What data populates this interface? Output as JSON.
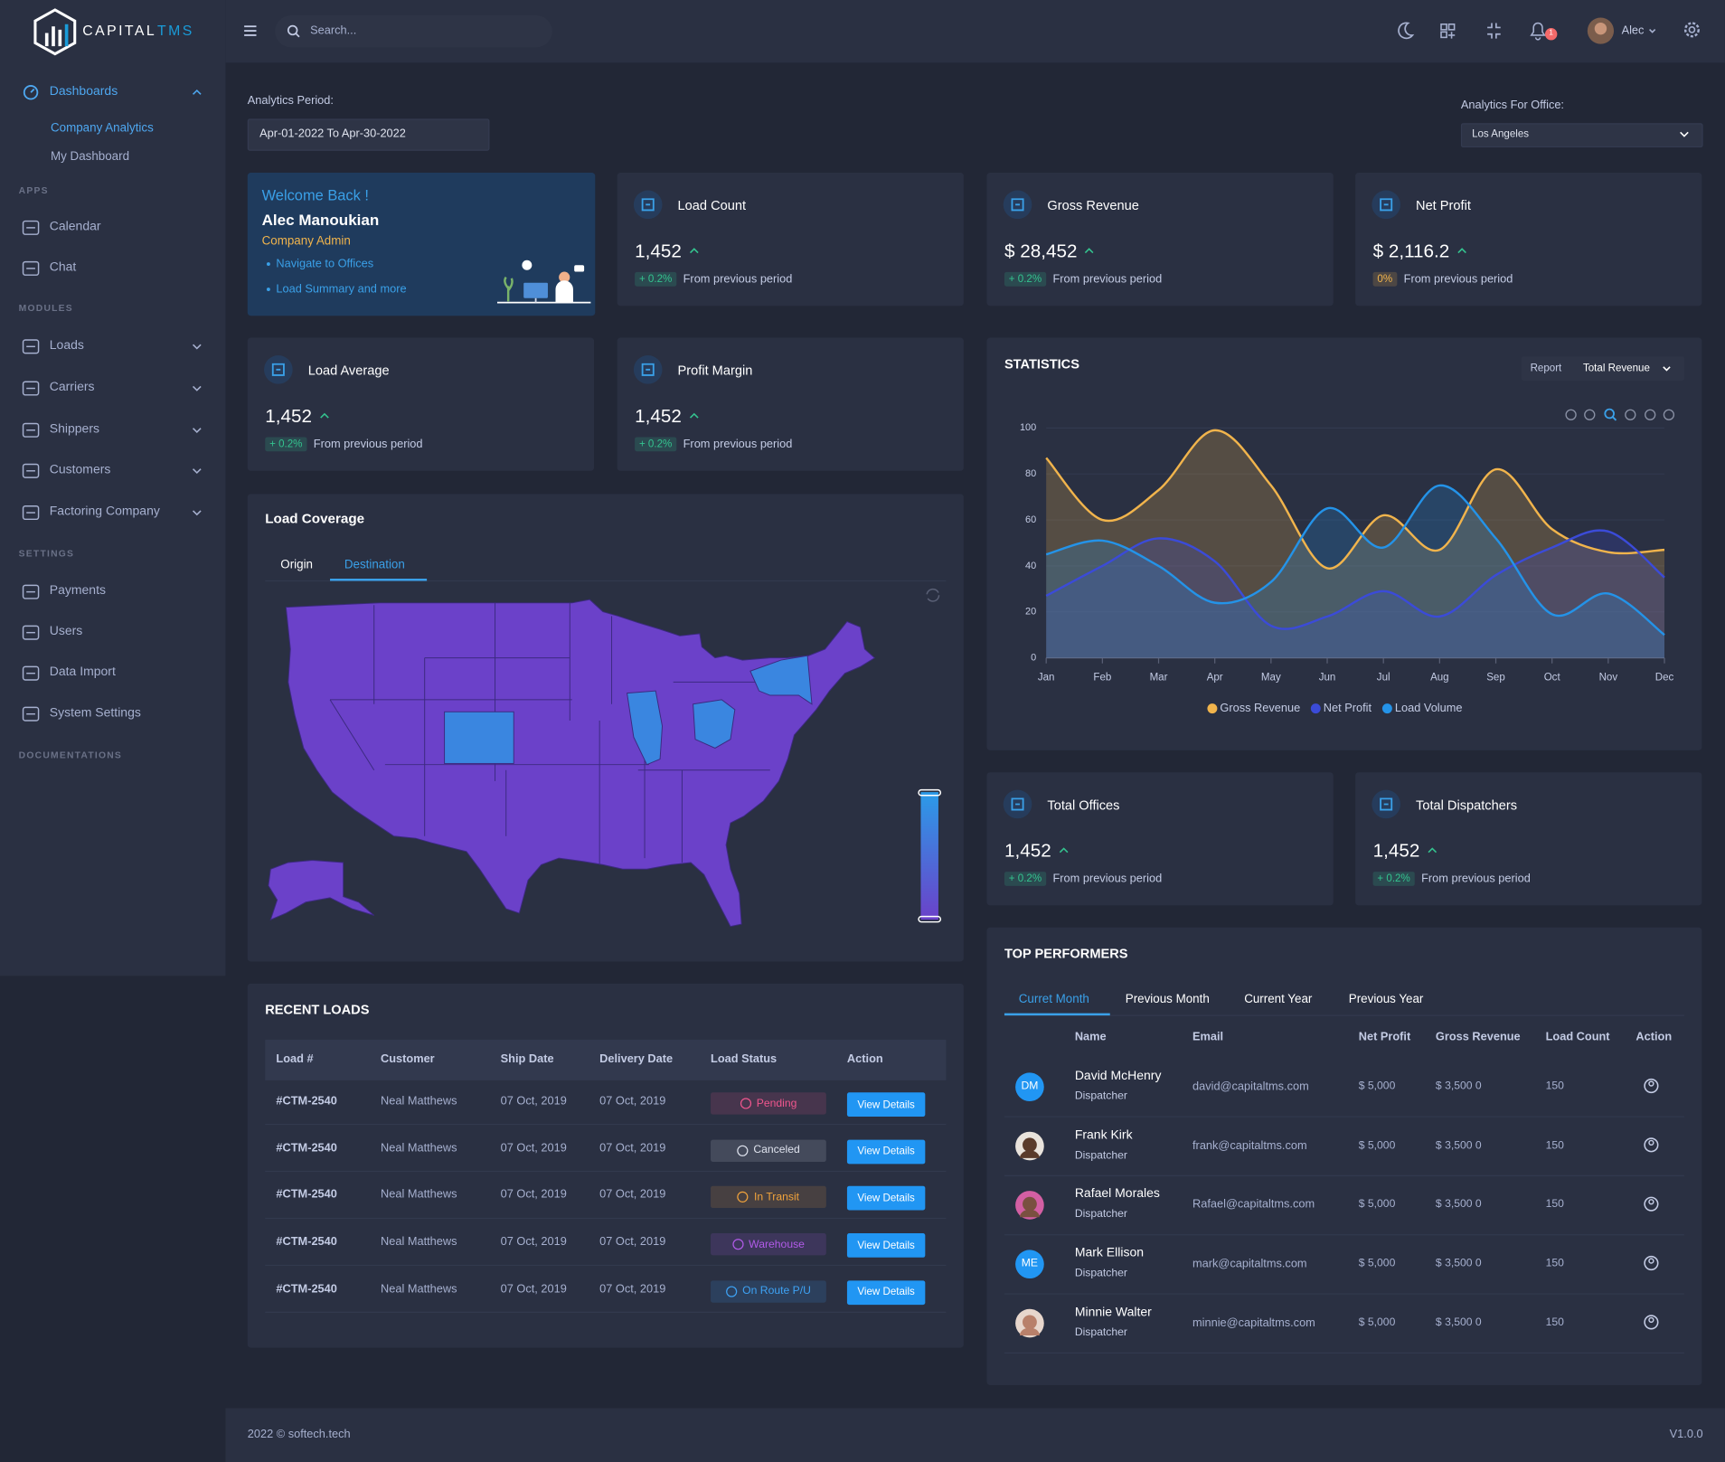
{
  "brand": {
    "name": "CAPITAL",
    "suffix": "TMS"
  },
  "sidebar": {
    "menu": {
      "label": "Dashboards",
      "items": [
        "Company Analytics",
        "My Dashboard"
      ]
    },
    "sections": [
      {
        "heading": "APPS",
        "items": [
          "Calendar",
          "Chat"
        ]
      },
      {
        "heading": "MODULES",
        "items": [
          "Loads",
          "Carriers",
          "Shippers",
          "Customers",
          "Factoring Company"
        ]
      },
      {
        "heading": "SETTINGS",
        "items": [
          "Payments",
          "Users",
          "Data Import",
          "System Settings"
        ]
      },
      {
        "heading": "DOCUMENTATIONS",
        "items": []
      }
    ]
  },
  "header": {
    "search_placeholder": "Search...",
    "notifications": 1,
    "user": "Alec"
  },
  "filters": {
    "period_label": "Analytics Period:",
    "period": "Apr-01-2022 To Apr-30-2022",
    "office_label": "Analytics For Office:",
    "office": "Los Angeles"
  },
  "welcome": {
    "greeting": "Welcome Back !",
    "name": "Alec Manoukian",
    "role": "Company Admin",
    "links": [
      "Navigate to Offices",
      "Load Summary and more"
    ]
  },
  "kpis": [
    {
      "title": "Load Count",
      "value": "1,452",
      "change": "+ 0.2%",
      "change_color": "#34c38f",
      "note": "From previous period"
    },
    {
      "title": "Gross Revenue",
      "value": "$ 28,452",
      "change": "+ 0.2%",
      "change_color": "#34c38f",
      "note": "From previous period"
    },
    {
      "title": "Net Profit",
      "value": "$ 2,116.2",
      "change": "0%",
      "change_color": "#f1b44c",
      "note": "From previous period"
    },
    {
      "title": "Load Average",
      "value": "1,452",
      "change": "+ 0.2%",
      "change_color": "#34c38f",
      "note": "From previous period"
    },
    {
      "title": "Profit Margin",
      "value": "1,452",
      "change": "+ 0.2%",
      "change_color": "#34c38f",
      "note": "From previous period"
    },
    {
      "title": "Total Offices",
      "value": "1,452",
      "change": "+ 0.2%",
      "change_color": "#34c38f",
      "note": "From previous period"
    },
    {
      "title": "Total Dispatchers",
      "value": "1,452",
      "change": "+ 0.2%",
      "change_color": "#34c38f",
      "note": "From previous period"
    }
  ],
  "chart_data": {
    "type": "area",
    "title": "STATISTICS",
    "report": "Report",
    "metric": "Total Revenue",
    "categories": [
      "Jan",
      "Feb",
      "Mar",
      "Apr",
      "May",
      "Jun",
      "Jul",
      "Aug",
      "Sep",
      "Oct",
      "Nov",
      "Dec"
    ],
    "series": [
      {
        "name": "Gross Revenue",
        "color": "#f1b44c",
        "values": [
          87,
          60,
          73,
          99,
          75,
          39,
          62,
          47,
          82,
          56,
          46,
          47
        ]
      },
      {
        "name": "Net Profit",
        "color": "#3b4bd8",
        "values": [
          27,
          40,
          52,
          42,
          14,
          18,
          29,
          18,
          36,
          48,
          55,
          35
        ]
      },
      {
        "name": "Load Volume",
        "color": "#2493e8",
        "values": [
          45,
          51,
          40,
          24,
          33,
          65,
          48,
          75,
          52,
          19,
          28,
          10
        ]
      }
    ],
    "ylim": [
      0,
      100
    ],
    "yticks": [
      0,
      20,
      40,
      60,
      80,
      100
    ],
    "grid": true
  },
  "load_coverage": {
    "title": "Load Coverage",
    "tabs": [
      "Origin",
      "Destination"
    ]
  },
  "recent_loads": {
    "title": "RECENT LOADS",
    "columns": [
      "Load #",
      "Customer",
      "Ship Date",
      "Delivery Date",
      "Load Status",
      "Action"
    ],
    "rows": [
      {
        "load": "#CTM-2540",
        "customer": "Neal Matthews",
        "ship_date": "07 Oct, 2019",
        "delivery_date": "07 Oct, 2019",
        "status": "Pending",
        "status_color": "#f0568e",
        "action": "View Details"
      },
      {
        "load": "#CTM-2540",
        "customer": "Neal Matthews",
        "ship_date": "07 Oct, 2019",
        "delivery_date": "07 Oct, 2019",
        "status": "Canceled",
        "status_color": "#dfe3ee",
        "action": "View Details"
      },
      {
        "load": "#CTM-2540",
        "customer": "Neal Matthews",
        "ship_date": "07 Oct, 2019",
        "delivery_date": "07 Oct, 2019",
        "status": "In Transit",
        "status_color": "#f1a33c",
        "action": "View Details"
      },
      {
        "load": "#CTM-2540",
        "customer": "Neal Matthews",
        "ship_date": "07 Oct, 2019",
        "delivery_date": "07 Oct, 2019",
        "status": "Warehouse",
        "status_color": "#b15be8",
        "action": "View Details"
      },
      {
        "load": "#CTM-2540",
        "customer": "Neal Matthews",
        "ship_date": "07 Oct, 2019",
        "delivery_date": "07 Oct, 2019",
        "status": "On Route P/U",
        "status_color": "#3ea3f5",
        "action": "View Details"
      }
    ]
  },
  "top_performers": {
    "title": "TOP PERFORMERS",
    "tabs": [
      "Curret Month",
      "Previous Month",
      "Current Year",
      "Previous Year"
    ],
    "columns": [
      "Name",
      "Email",
      "Net Profit",
      "Gross Revenue",
      "Load Count",
      "Action"
    ],
    "rows": [
      {
        "initials": "DM",
        "name": "David McHenry",
        "role": "Dispatcher",
        "email": "david@capitaltms.com",
        "net_profit": "$ 5,000",
        "gross_revenue": "$ 3,500 0",
        "load_count": 150
      },
      {
        "name": "Frank Kirk",
        "role": "Dispatcher",
        "email": "frank@capitaltms.com",
        "net_profit": "$ 5,000",
        "gross_revenue": "$ 3,500 0",
        "load_count": 150
      },
      {
        "name": "Rafael Morales",
        "role": "Dispatcher",
        "email": "Rafael@capitaltms.com",
        "net_profit": "$ 5,000",
        "gross_revenue": "$ 3,500 0",
        "load_count": 150
      },
      {
        "initials": "ME",
        "name": "Mark Ellison",
        "role": "Dispatcher",
        "email": "mark@capitaltms.com",
        "net_profit": "$ 5,000",
        "gross_revenue": "$ 3,500 0",
        "load_count": 150
      },
      {
        "name": "Minnie Walter",
        "role": "Dispatcher",
        "email": "minnie@capitaltms.com",
        "net_profit": "$ 5,000",
        "gross_revenue": "$ 3,500 0",
        "load_count": 150
      }
    ]
  },
  "footer": {
    "copyright": "2022 © softech.tech",
    "version": "V1.0.0"
  }
}
